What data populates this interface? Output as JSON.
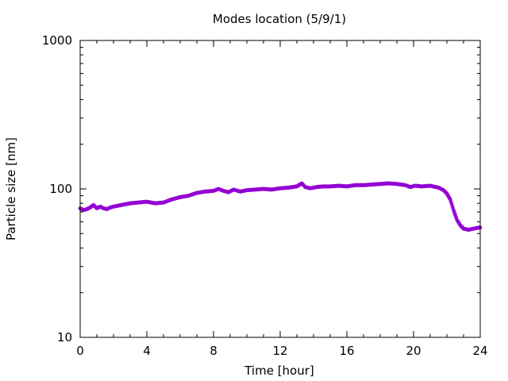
{
  "chart_data": {
    "type": "scatter",
    "title": "Modes location (5/9/1)",
    "xlabel": "Time [hour]",
    "ylabel": "Particle size [nm]",
    "xlim": [
      0,
      24
    ],
    "ylim": [
      10,
      1000
    ],
    "y_scale": "log",
    "grid": false,
    "x_ticks": [
      "0",
      "4",
      "8",
      "12",
      "16",
      "20",
      "24"
    ],
    "y_ticks": [
      "10",
      "100",
      "1000"
    ],
    "colors": {
      "series": "#9400d3",
      "axis": "#000000"
    },
    "series": [
      {
        "x": [
          0.0,
          0.2,
          0.4,
          0.6,
          0.8,
          1.0,
          1.2,
          1.4,
          1.6,
          1.8,
          2.0,
          2.5,
          3.0,
          3.5,
          4.0,
          4.5,
          5.0,
          5.5,
          6.0,
          6.5,
          7.0,
          7.5,
          8.0,
          8.3,
          8.6,
          8.9,
          9.2,
          9.6,
          10.0,
          10.5,
          11.0,
          11.5,
          12.0,
          12.5,
          13.0,
          13.3,
          13.5,
          13.8,
          14.2,
          14.6,
          15.0,
          15.5,
          16.0,
          16.5,
          17.0,
          17.5,
          18.0,
          18.5,
          19.0,
          19.5,
          19.8,
          20.1,
          20.5,
          21.0,
          21.5,
          21.8,
          22.0,
          22.2,
          22.4,
          22.6,
          22.8,
          23.0,
          23.3,
          23.6,
          24.0
        ],
        "y": [
          74,
          72,
          73,
          75,
          78,
          74,
          76,
          74,
          73,
          75,
          76,
          78,
          80,
          81,
          82,
          80,
          81,
          85,
          88,
          90,
          94,
          96,
          97,
          100,
          97,
          95,
          99,
          96,
          98,
          99,
          100,
          99,
          101,
          102,
          104,
          109,
          103,
          101,
          103,
          104,
          104,
          105,
          104,
          106,
          106,
          107,
          108,
          109,
          108,
          106,
          103,
          105,
          104,
          105,
          102,
          98,
          93,
          85,
          72,
          62,
          57,
          54,
          53,
          54,
          55
        ]
      }
    ]
  }
}
